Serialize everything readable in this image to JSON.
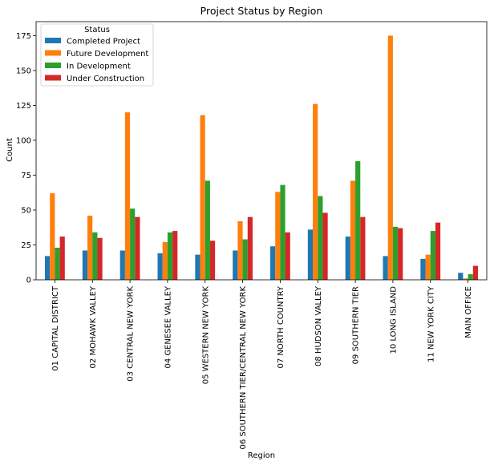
{
  "chart_data": {
    "type": "bar",
    "title": "Project Status by Region",
    "xlabel": "Region",
    "ylabel": "Count",
    "ylim": [
      0,
      185
    ],
    "yticks": [
      0,
      25,
      50,
      75,
      100,
      125,
      150,
      175
    ],
    "grid": false,
    "legend": {
      "title": "Status",
      "placement": "top-left"
    },
    "categories": [
      "01 CAPITAL DISTRICT",
      "02 MOHAWK VALLEY",
      "03 CENTRAL NEW YORK",
      "04 GENESEE VALLEY",
      "05 WESTERN NEW YORK",
      "06 SOUTHERN TIER/CENTRAL NEW YORK",
      "07 NORTH COUNTRY",
      "08 HUDSON VALLEY",
      "09 SOUTHERN TIER",
      "10 LONG ISLAND",
      "11 NEW YORK CITY",
      "MAIN OFFICE"
    ],
    "series": [
      {
        "name": "Completed Project",
        "color": "#1f77b4",
        "values": [
          17,
          21,
          21,
          19,
          18,
          21,
          24,
          36,
          31,
          17,
          15,
          5
        ]
      },
      {
        "name": "Future Development",
        "color": "#ff7f0e",
        "values": [
          62,
          46,
          120,
          27,
          118,
          42,
          63,
          126,
          71,
          175,
          18,
          1
        ]
      },
      {
        "name": "In Development",
        "color": "#2ca02c",
        "values": [
          23,
          34,
          51,
          34,
          71,
          29,
          68,
          60,
          85,
          38,
          35,
          4
        ]
      },
      {
        "name": "Under Construction",
        "color": "#d62728",
        "values": [
          31,
          30,
          45,
          35,
          28,
          45,
          34,
          48,
          45,
          37,
          41,
          10
        ]
      }
    ]
  }
}
